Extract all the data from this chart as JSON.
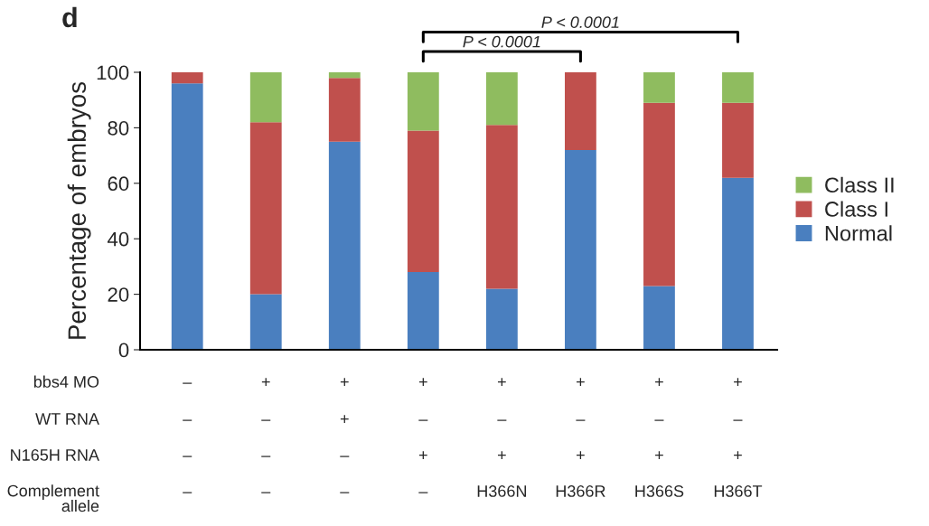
{
  "chart_data": {
    "type": "bar",
    "stacked": true,
    "ylabel": "Percentage of embryos",
    "categories": [
      "–\n–\n–\n–",
      "+\n–\n–\n–",
      "+\n+\n–\n–",
      "+\n–\n+\n–",
      "+\n–\n+\nH366N",
      "+\n–\n+\nH366R",
      "+\n–\n+\nH366S",
      "+\n–\n+\nH366T"
    ],
    "series": [
      {
        "name": "Normal",
        "color": "#4a7fbf",
        "values": [
          96,
          20,
          75,
          28,
          22,
          72,
          23,
          62
        ]
      },
      {
        "name": "Class I",
        "color": "#c0504d",
        "values": [
          4,
          62,
          23,
          51,
          59,
          28,
          66,
          27
        ]
      },
      {
        "name": "Class II",
        "color": "#8fbc5f",
        "values": [
          0,
          18,
          2,
          21,
          19,
          0,
          11,
          11
        ]
      }
    ],
    "ylim": [
      0,
      100
    ],
    "yticks": [
      0,
      20,
      40,
      60,
      80,
      100
    ],
    "legend": "right",
    "grid": false,
    "annotations": [
      "d",
      "bbs4 MO",
      "WT RNA",
      "N165H RNA",
      "Complement\nallele",
      "P < 0.0001",
      "P < 0.0001"
    ]
  }
}
